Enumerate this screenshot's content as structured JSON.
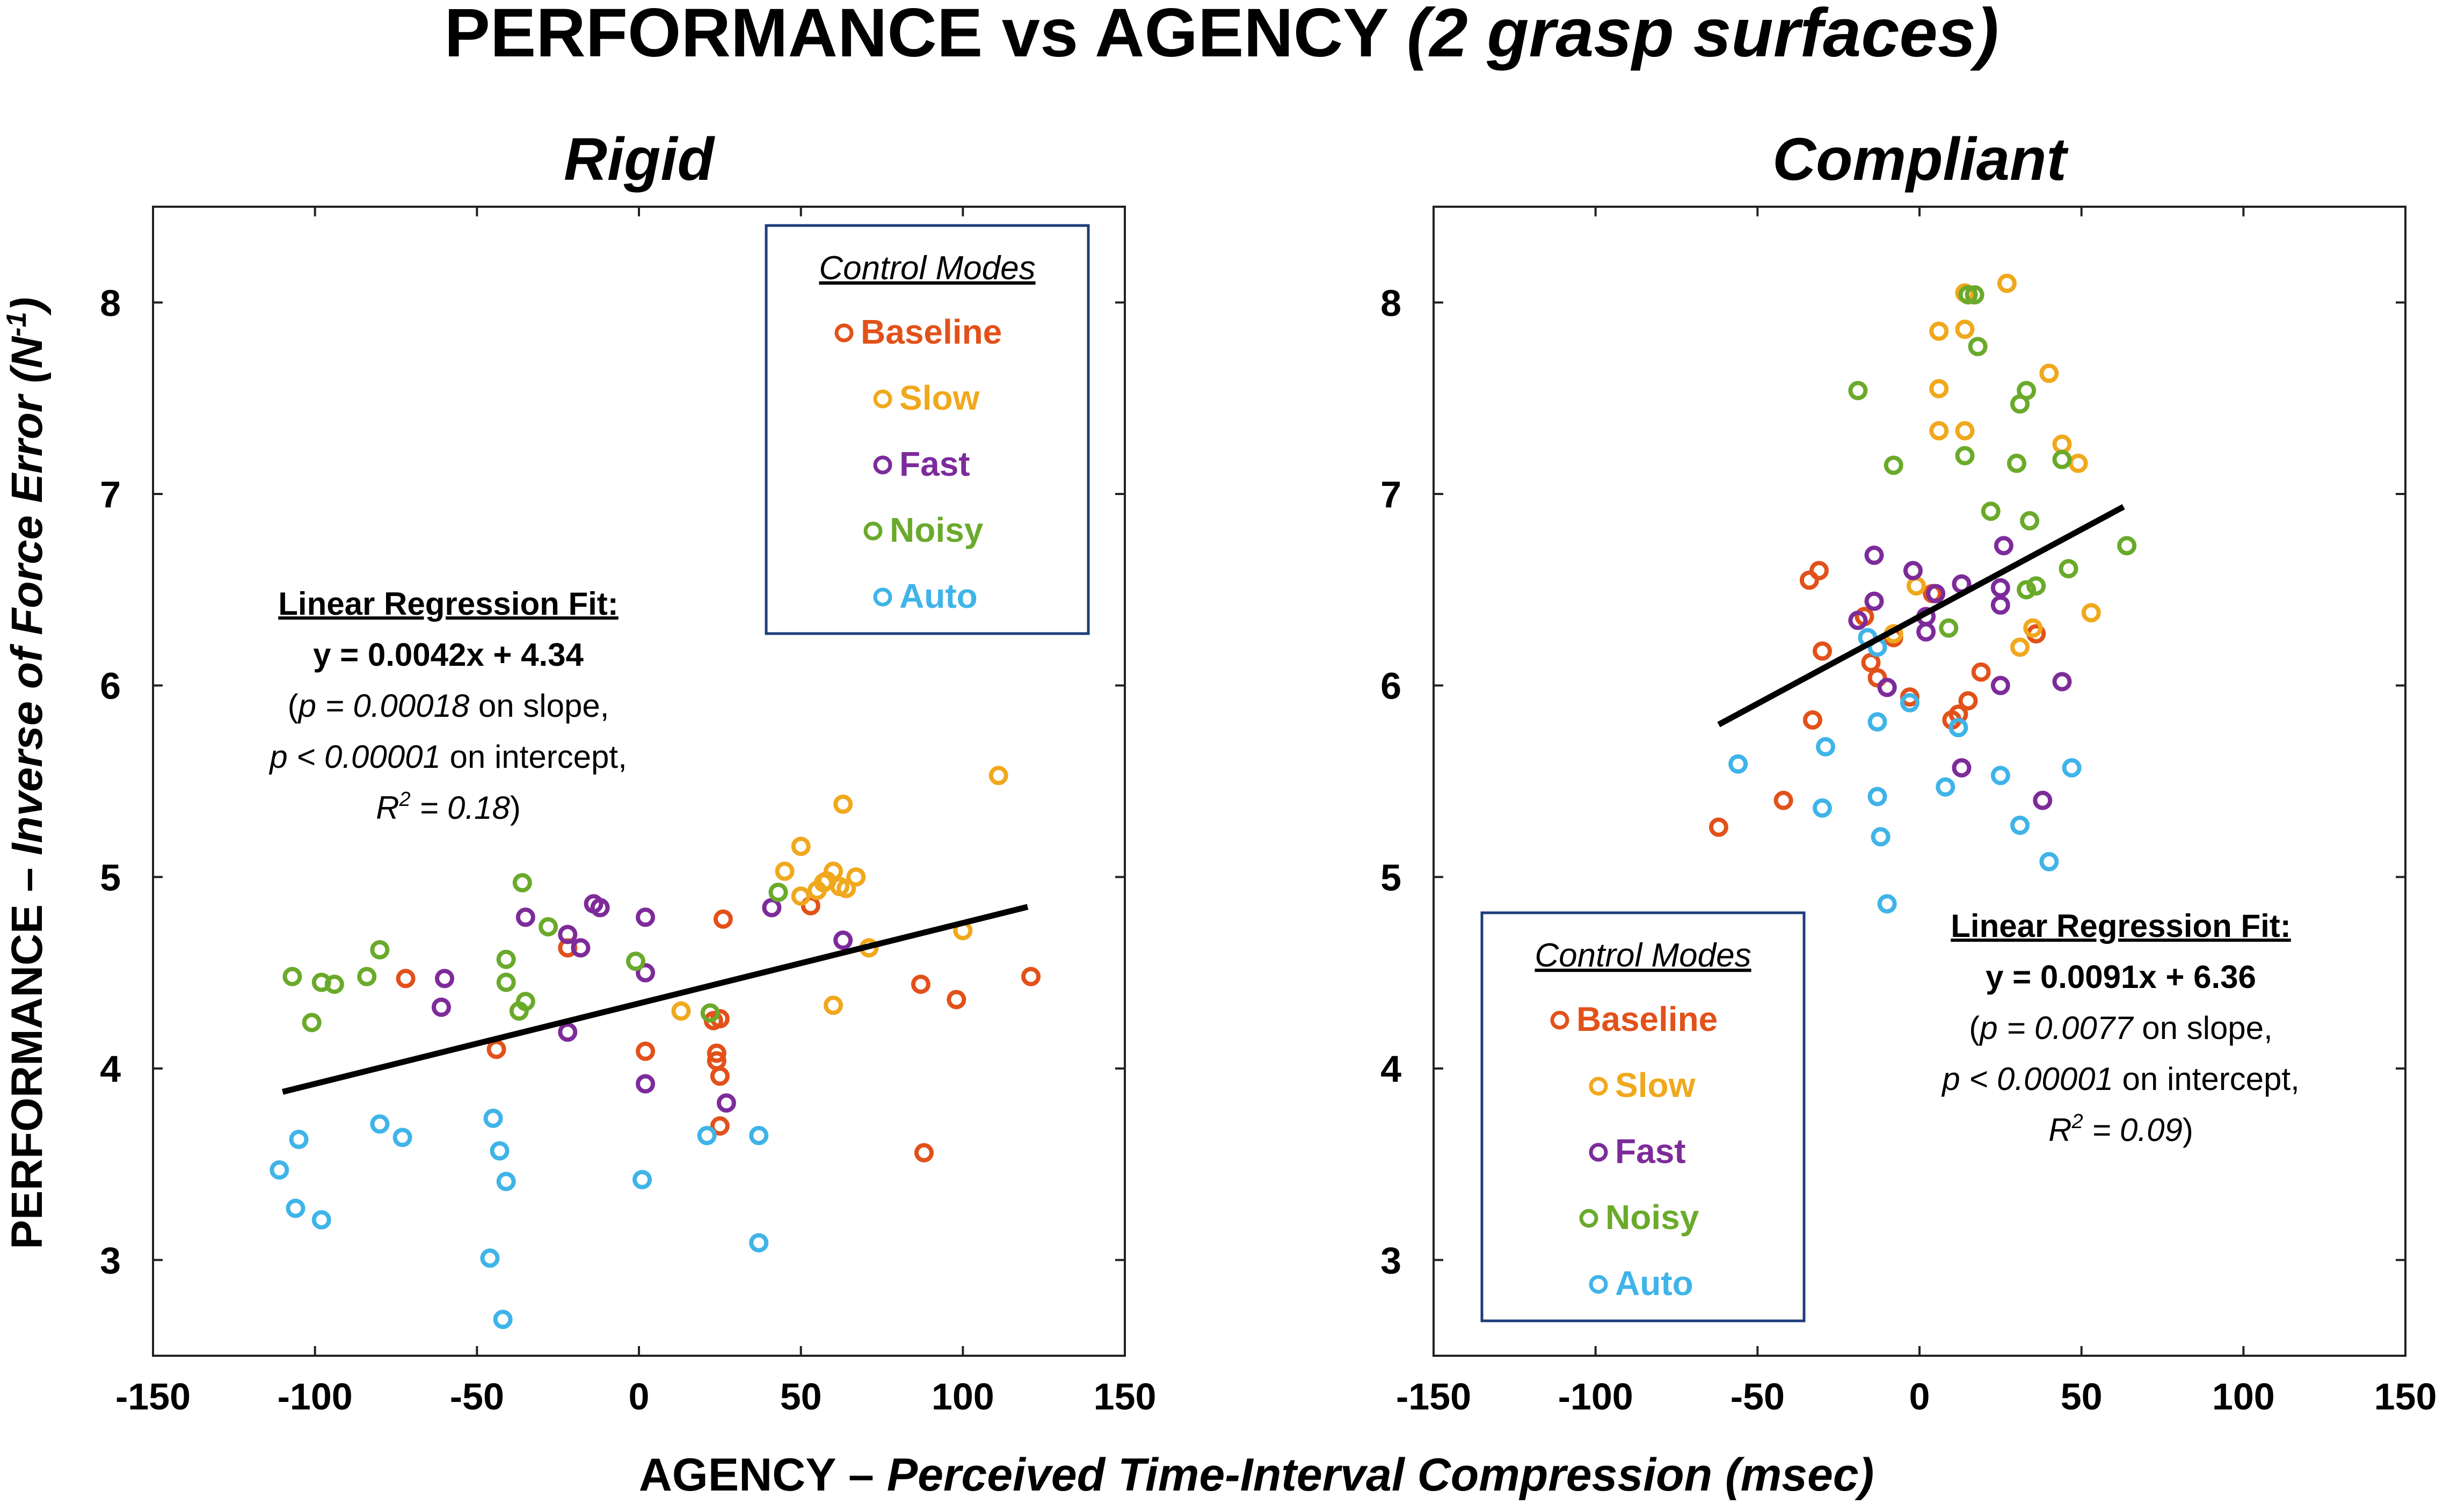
{
  "figure": {
    "title_main": "PERFORMANCE vs AGENCY ",
    "title_italic": "(2 grasp surfaces)",
    "xlabel_main": "AGENCY – ",
    "xlabel_italic": "Perceived Time-Interval Compression (msec)",
    "ylabel_main": "PERFORMANCE – ",
    "ylabel_italic": "Inverse of Force Error (N",
    "ylabel_sup": "-1",
    "ylabel_close": ")"
  },
  "colors": {
    "Baseline": "#e2511a",
    "Slow": "#f0a81c",
    "Fast": "#7d2b9a",
    "Noisy": "#6aaa2b",
    "Auto": "#3fb4e8",
    "legend_border": "#1f3d7a"
  },
  "chart_data": [
    {
      "type": "scatter",
      "title": "Rigid",
      "xlim": [
        -150,
        150
      ],
      "ylim": [
        2.5,
        8.5
      ],
      "xticks": [
        -150,
        -100,
        -50,
        0,
        50,
        100,
        150
      ],
      "yticks": [
        3,
        4,
        5,
        6,
        7,
        8
      ],
      "legend_title": "Control Modes",
      "legend_position": "top-right",
      "legend": [
        "Baseline",
        "Slow",
        "Fast",
        "Noisy",
        "Auto"
      ],
      "fit": {
        "header": "Linear Regression Fit:",
        "equation": "y = 0.0042x + 4.34",
        "p_slope_italic": "p = 0.00018",
        "p_slope_text": " on slope,",
        "p_int_italic": "p < 0.00001",
        "p_int_text": " on intercept,",
        "r2_italic": "R",
        "r2_sup": "2",
        "r2_rest": " = 0.18",
        "slope": 0.0042,
        "intercept": 4.34,
        "x_range": [
          -110,
          120
        ]
      },
      "series": [
        {
          "name": "Baseline",
          "points": [
            [
              -72,
              4.47
            ],
            [
              -44,
              4.1
            ],
            [
              -22,
              4.63
            ],
            [
              2,
              4.09
            ],
            [
              23,
              4.25
            ],
            [
              25,
              4.26
            ],
            [
              24,
              4.08
            ],
            [
              24,
              4.04
            ],
            [
              25,
              3.96
            ],
            [
              25,
              3.7
            ],
            [
              26,
              4.78
            ],
            [
              53,
              4.85
            ],
            [
              87,
              4.44
            ],
            [
              88,
              3.56
            ],
            [
              98,
              4.36
            ],
            [
              121,
              4.48
            ]
          ]
        },
        {
          "name": "Slow",
          "points": [
            [
              13,
              4.3
            ],
            [
              45,
              5.03
            ],
            [
              50,
              5.16
            ],
            [
              50,
              4.9
            ],
            [
              55,
              4.93
            ],
            [
              57,
              4.97
            ],
            [
              58,
              4.98
            ],
            [
              60,
              5.03
            ],
            [
              60,
              4.33
            ],
            [
              62,
              4.95
            ],
            [
              63,
              5.38
            ],
            [
              64,
              4.94
            ],
            [
              67,
              5.0
            ],
            [
              71,
              4.63
            ],
            [
              100,
              4.72
            ],
            [
              111,
              5.53
            ]
          ]
        },
        {
          "name": "Fast",
          "points": [
            [
              -60,
              4.47
            ],
            [
              -61,
              4.32
            ],
            [
              -35,
              4.79
            ],
            [
              -22,
              4.7
            ],
            [
              -22,
              4.19
            ],
            [
              -18,
              4.63
            ],
            [
              -14,
              4.86
            ],
            [
              -12,
              4.84
            ],
            [
              2,
              4.79
            ],
            [
              2,
              4.5
            ],
            [
              2,
              3.92
            ],
            [
              27,
              3.82
            ],
            [
              41,
              4.84
            ],
            [
              63,
              4.67
            ]
          ]
        },
        {
          "name": "Noisy",
          "points": [
            [
              -107,
              4.48
            ],
            [
              -101,
              4.24
            ],
            [
              -98,
              4.45
            ],
            [
              -94,
              4.44
            ],
            [
              -84,
              4.48
            ],
            [
              -80,
              4.62
            ],
            [
              -41,
              4.57
            ],
            [
              -41,
              4.45
            ],
            [
              -37,
              4.3
            ],
            [
              -35,
              4.35
            ],
            [
              -36,
              4.97
            ],
            [
              -28,
              4.74
            ],
            [
              -1,
              4.56
            ],
            [
              22,
              4.29
            ],
            [
              43,
              4.92
            ]
          ]
        },
        {
          "name": "Auto",
          "points": [
            [
              -111,
              3.47
            ],
            [
              -106,
              3.27
            ],
            [
              -105,
              3.63
            ],
            [
              -98,
              3.21
            ],
            [
              -80,
              3.71
            ],
            [
              -73,
              3.64
            ],
            [
              -46,
              3.01
            ],
            [
              -45,
              3.74
            ],
            [
              -43,
              3.57
            ],
            [
              -42,
              2.69
            ],
            [
              -41,
              3.41
            ],
            [
              1,
              3.42
            ],
            [
              21,
              3.65
            ],
            [
              37,
              3.65
            ],
            [
              37,
              3.09
            ]
          ]
        }
      ]
    },
    {
      "type": "scatter",
      "title": "Compliant",
      "xlim": [
        -150,
        150
      ],
      "ylim": [
        2.5,
        8.5
      ],
      "xticks": [
        -150,
        -100,
        -50,
        0,
        50,
        100,
        150
      ],
      "yticks": [
        3,
        4,
        5,
        6,
        7,
        8
      ],
      "legend_title": "Control Modes",
      "legend_position": "bottom-left",
      "legend": [
        "Baseline",
        "Slow",
        "Fast",
        "Noisy",
        "Auto"
      ],
      "fit": {
        "header": "Linear Regression Fit:",
        "equation": "y = 0.0091x + 6.36",
        "p_slope_italic": "p = 0.0077",
        "p_slope_text": " on slope,",
        "p_int_italic": "p < 0.00001",
        "p_int_text": " on intercept,",
        "r2_italic": "R",
        "r2_sup": "2",
        "r2_rest": " = 0.09",
        "slope": 0.0091,
        "intercept": 6.36,
        "x_range": [
          -62,
          63
        ]
      },
      "series": [
        {
          "name": "Baseline",
          "points": [
            [
              -62,
              5.26
            ],
            [
              -42,
              5.4
            ],
            [
              -34,
              6.55
            ],
            [
              -31,
              6.6
            ],
            [
              -30,
              6.18
            ],
            [
              -33,
              5.82
            ],
            [
              -17,
              6.36
            ],
            [
              -15,
              6.12
            ],
            [
              -13,
              6.04
            ],
            [
              -8,
              6.25
            ],
            [
              -3,
              5.94
            ],
            [
              4,
              6.48
            ],
            [
              10,
              5.82
            ],
            [
              12,
              5.85
            ],
            [
              15,
              5.92
            ],
            [
              19,
              6.07
            ],
            [
              36,
              6.27
            ]
          ]
        },
        {
          "name": "Slow",
          "points": [
            [
              -8,
              6.27
            ],
            [
              -1,
              6.52
            ],
            [
              6,
              7.55
            ],
            [
              6,
              7.33
            ],
            [
              6,
              7.85
            ],
            [
              14,
              7.86
            ],
            [
              14,
              7.33
            ],
            [
              14,
              8.05
            ],
            [
              27,
              8.1
            ],
            [
              31,
              6.2
            ],
            [
              35,
              6.3
            ],
            [
              40,
              7.63
            ],
            [
              44,
              7.26
            ],
            [
              49,
              7.16
            ],
            [
              53,
              6.38
            ]
          ]
        },
        {
          "name": "Fast",
          "points": [
            [
              -19,
              6.34
            ],
            [
              -14,
              6.68
            ],
            [
              -14,
              6.44
            ],
            [
              -10,
              5.99
            ],
            [
              -2,
              6.6
            ],
            [
              2,
              6.28
            ],
            [
              2,
              6.36
            ],
            [
              5,
              6.48
            ],
            [
              13,
              6.53
            ],
            [
              13,
              5.57
            ],
            [
              25,
              6.51
            ],
            [
              25,
              6.42
            ],
            [
              25,
              6.0
            ],
            [
              26,
              6.73
            ],
            [
              38,
              5.4
            ],
            [
              44,
              6.02
            ]
          ]
        },
        {
          "name": "Noisy",
          "points": [
            [
              -19,
              7.54
            ],
            [
              -8,
              7.15
            ],
            [
              9,
              6.3
            ],
            [
              14,
              7.2
            ],
            [
              15,
              8.04
            ],
            [
              17,
              8.04
            ],
            [
              18,
              7.77
            ],
            [
              22,
              6.91
            ],
            [
              30,
              7.16
            ],
            [
              31,
              7.47
            ],
            [
              33,
              7.54
            ],
            [
              34,
              6.86
            ],
            [
              33,
              6.5
            ],
            [
              36,
              6.52
            ],
            [
              44,
              7.18
            ],
            [
              46,
              6.61
            ],
            [
              64,
              6.73
            ]
          ]
        },
        {
          "name": "Auto",
          "points": [
            [
              -56,
              5.59
            ],
            [
              -30,
              5.36
            ],
            [
              -29,
              5.68
            ],
            [
              -13,
              5.81
            ],
            [
              -13,
              5.42
            ],
            [
              -12,
              5.21
            ],
            [
              -10,
              4.86
            ],
            [
              -13,
              6.2
            ],
            [
              -16,
              6.25
            ],
            [
              -3,
              5.91
            ],
            [
              8,
              5.47
            ],
            [
              12,
              5.78
            ],
            [
              25,
              5.53
            ],
            [
              31,
              5.27
            ],
            [
              40,
              5.08
            ],
            [
              47,
              5.57
            ]
          ]
        }
      ]
    }
  ]
}
